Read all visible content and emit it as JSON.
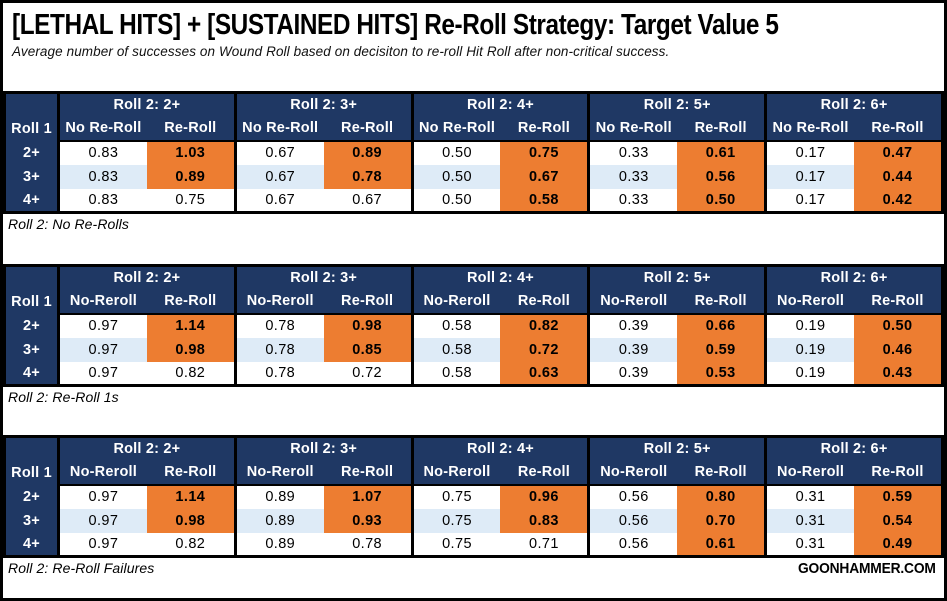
{
  "colors": {
    "header_navy": "#1F3864",
    "highlight_orange": "#ED7D31",
    "alt_row_blue": "#DEEBF7",
    "border_black": "#000000",
    "background": "#FFFFFF"
  },
  "footer": {
    "brand": "GOONHAMMER.COM"
  },
  "chart_data": {
    "type": "table",
    "title": "[LETHAL HITS] + [SUSTAINED HITS] Re-Roll Strategy: Target Value 5",
    "subtitle": "Average number of successes on Wound Roll based on decisiton to re-roll Hit Roll after non-critical success.",
    "row_axis_label": "Roll 1",
    "row_labels": [
      "2+",
      "3+",
      "4+"
    ],
    "col_groups": [
      "Roll 2: 2+",
      "Roll 2: 3+",
      "Roll 2: 4+",
      "Roll 2: 5+",
      "Roll 2: 6+"
    ],
    "highlight_note": "orange cells mark Re-Roll values shown highlighted",
    "tables": [
      {
        "caption": "Roll 2: No Re-Rolls",
        "sub_columns": [
          "No Re-Roll",
          "Re-Roll"
        ],
        "rows": [
          {
            "roll1": "2+",
            "no_reroll": [
              "0.83",
              "0.67",
              "0.50",
              "0.33",
              "0.17"
            ],
            "re_roll": [
              "1.03",
              "0.89",
              "0.75",
              "0.61",
              "0.47"
            ],
            "re_roll_highlighted": [
              true,
              true,
              true,
              true,
              true
            ]
          },
          {
            "roll1": "3+",
            "no_reroll": [
              "0.83",
              "0.67",
              "0.50",
              "0.33",
              "0.17"
            ],
            "re_roll": [
              "0.89",
              "0.78",
              "0.67",
              "0.56",
              "0.44"
            ],
            "re_roll_highlighted": [
              true,
              true,
              true,
              true,
              true
            ]
          },
          {
            "roll1": "4+",
            "no_reroll": [
              "0.83",
              "0.67",
              "0.50",
              "0.33",
              "0.17"
            ],
            "re_roll": [
              "0.75",
              "0.67",
              "0.58",
              "0.50",
              "0.42"
            ],
            "re_roll_highlighted": [
              false,
              false,
              true,
              true,
              true
            ]
          }
        ]
      },
      {
        "caption": "Roll 2: Re-Roll 1s",
        "sub_columns": [
          "No-Reroll",
          "Re-Roll"
        ],
        "rows": [
          {
            "roll1": "2+",
            "no_reroll": [
              "0.97",
              "0.78",
              "0.58",
              "0.39",
              "0.19"
            ],
            "re_roll": [
              "1.14",
              "0.98",
              "0.82",
              "0.66",
              "0.50"
            ],
            "re_roll_highlighted": [
              true,
              true,
              true,
              true,
              true
            ]
          },
          {
            "roll1": "3+",
            "no_reroll": [
              "0.97",
              "0.78",
              "0.58",
              "0.39",
              "0.19"
            ],
            "re_roll": [
              "0.98",
              "0.85",
              "0.72",
              "0.59",
              "0.46"
            ],
            "re_roll_highlighted": [
              true,
              true,
              true,
              true,
              true
            ]
          },
          {
            "roll1": "4+",
            "no_reroll": [
              "0.97",
              "0.78",
              "0.58",
              "0.39",
              "0.19"
            ],
            "re_roll": [
              "0.82",
              "0.72",
              "0.63",
              "0.53",
              "0.43"
            ],
            "re_roll_highlighted": [
              false,
              false,
              true,
              true,
              true
            ]
          }
        ]
      },
      {
        "caption": "Roll 2: Re-Roll Failures",
        "sub_columns": [
          "No-Reroll",
          "Re-Roll"
        ],
        "rows": [
          {
            "roll1": "2+",
            "no_reroll": [
              "0.97",
              "0.89",
              "0.75",
              "0.56",
              "0.31"
            ],
            "re_roll": [
              "1.14",
              "1.07",
              "0.96",
              "0.80",
              "0.59"
            ],
            "re_roll_highlighted": [
              true,
              true,
              true,
              true,
              true
            ]
          },
          {
            "roll1": "3+",
            "no_reroll": [
              "0.97",
              "0.89",
              "0.75",
              "0.56",
              "0.31"
            ],
            "re_roll": [
              "0.98",
              "0.93",
              "0.83",
              "0.70",
              "0.54"
            ],
            "re_roll_highlighted": [
              true,
              true,
              true,
              true,
              true
            ]
          },
          {
            "roll1": "4+",
            "no_reroll": [
              "0.97",
              "0.89",
              "0.75",
              "0.56",
              "0.31"
            ],
            "re_roll": [
              "0.82",
              "0.78",
              "0.71",
              "0.61",
              "0.49"
            ],
            "re_roll_highlighted": [
              false,
              false,
              false,
              true,
              true
            ]
          }
        ]
      }
    ]
  }
}
